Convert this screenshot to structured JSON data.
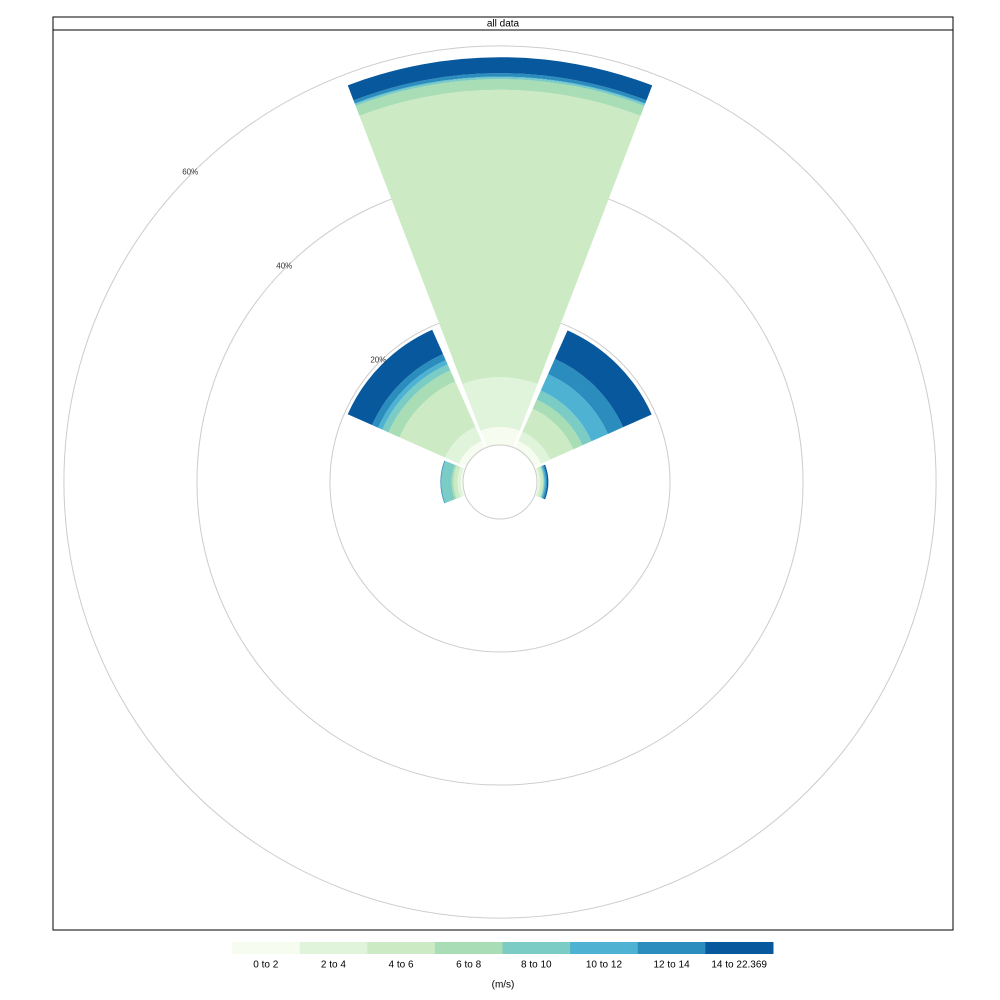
{
  "chart_data": {
    "type": "windrose",
    "title": "all data",
    "legend_title": "(m/s)",
    "x": [
      0,
      45,
      90,
      135,
      180,
      225,
      270,
      315
    ],
    "rlim": [
      0,
      66
    ],
    "rticks": [
      {
        "value": 20,
        "label": "20%"
      },
      {
        "value": 40,
        "label": "40%"
      },
      {
        "value": 60,
        "label": "60%"
      }
    ],
    "grid": true,
    "legend": "bottom",
    "series": [
      {
        "name": "0 to 2",
        "color": "#f7fcf0",
        "values": [
          2.7,
          1.2,
          0.2,
          0,
          0,
          0,
          0.3,
          1.2
        ]
      },
      {
        "name": "2 to 4",
        "color": "#e0f3db",
        "values": [
          7.5,
          1.5,
          0.3,
          0,
          0,
          0,
          0.5,
          2.3
        ]
      },
      {
        "name": "4 to 6",
        "color": "#ccebc5",
        "values": [
          43.2,
          3.8,
          0.4,
          0,
          0,
          0,
          0.6,
          7.5
        ]
      },
      {
        "name": "6 to 8",
        "color": "#a8ddb5",
        "values": [
          1.6,
          1.5,
          0.1,
          0,
          0,
          0,
          0.3,
          1.8
        ]
      },
      {
        "name": "8 to 10",
        "color": "#7bccc4",
        "values": [
          0.3,
          1.5,
          0.1,
          0,
          0,
          0,
          1.5,
          1.0
        ]
      },
      {
        "name": "10 to 12",
        "color": "#4eb3d3",
        "values": [
          0.1,
          2.7,
          0.2,
          0,
          0,
          0,
          0.1,
          0.7
        ]
      },
      {
        "name": "12 to 14",
        "color": "#2b8cbe",
        "values": [
          0.5,
          2.5,
          0.2,
          0,
          0,
          0,
          0.1,
          1.0
        ]
      },
      {
        "name": "14 to 22.369",
        "color": "#08589e",
        "values": [
          2.4,
          4.7,
          0.2,
          0,
          0,
          0,
          0,
          4.0
        ]
      }
    ]
  }
}
